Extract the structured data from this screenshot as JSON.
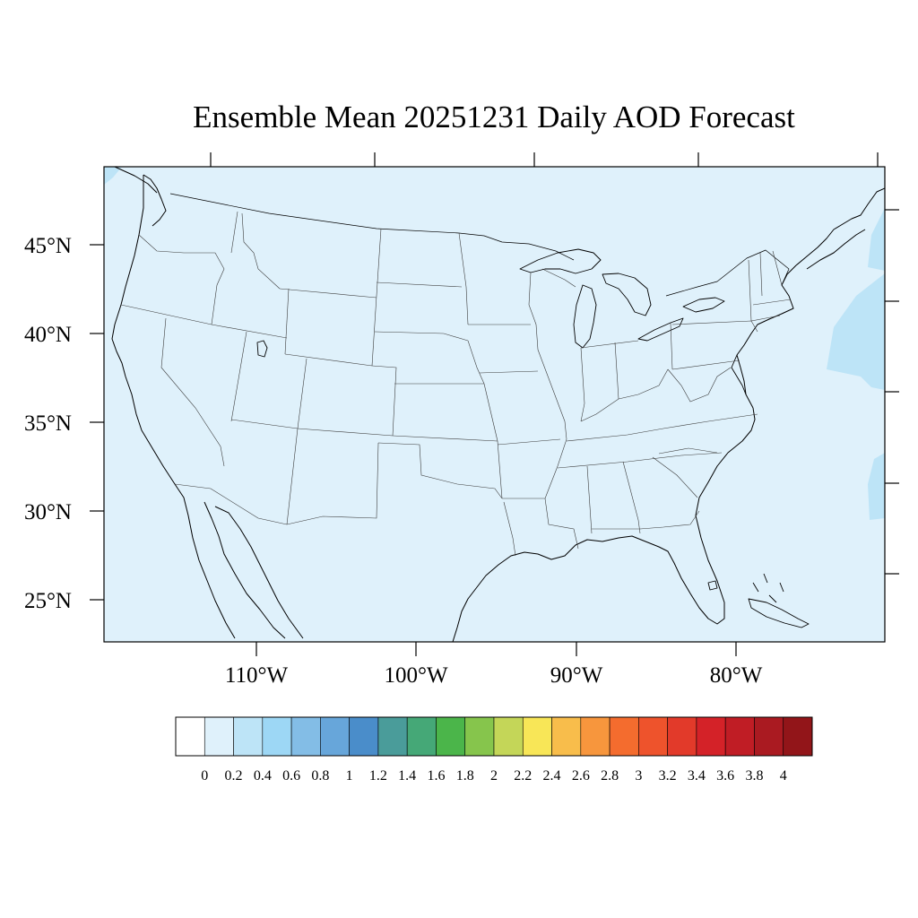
{
  "title": "Ensemble Mean 20251231 Daily AOD Forecast",
  "map": {
    "background_color": "#dff1fb",
    "elevated_color": "#bde4f7",
    "lat_labels": [
      "45°N",
      "40°N",
      "35°N",
      "30°N",
      "25°N"
    ],
    "lon_labels": [
      "110°W",
      "100°W",
      "90°W",
      "80°W"
    ]
  },
  "colorbar": {
    "colors": [
      "#ffffff",
      "#dff1fb",
      "#bde4f7",
      "#9dd7f5",
      "#83bde6",
      "#67a6da",
      "#4a8dca",
      "#4a9c9a",
      "#45a877",
      "#4bb54a",
      "#86c54c",
      "#c4d658",
      "#f8e657",
      "#f8bd4b",
      "#f7963d",
      "#f46c2e",
      "#ee532c",
      "#e23a2a",
      "#d42228",
      "#c01d25",
      "#aa1a21",
      "#921519"
    ],
    "labels": [
      "0",
      "0.2",
      "0.4",
      "0.6",
      "0.8",
      "1",
      "1.2",
      "1.4",
      "1.6",
      "1.8",
      "2",
      "2.2",
      "2.4",
      "2.6",
      "2.8",
      "3",
      "3.2",
      "3.4",
      "3.6",
      "3.8",
      "4"
    ]
  }
}
